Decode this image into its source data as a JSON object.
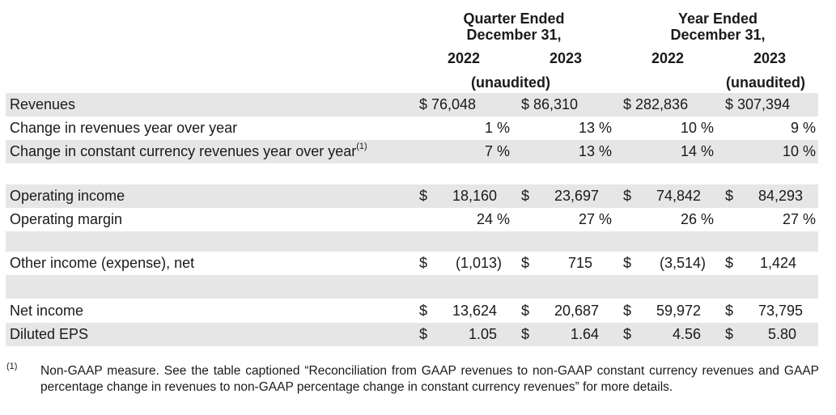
{
  "headers": {
    "quarter_group": [
      "Quarter Ended",
      "December 31,"
    ],
    "year_group": [
      "Year Ended",
      "December 31,"
    ],
    "years": [
      "2022",
      "2023",
      "2022",
      "2023"
    ],
    "unaudited_q": "(unaudited)",
    "unaudited_y": "(unaudited)"
  },
  "rows": {
    "revenues": {
      "label": "Revenues",
      "c1": "$ 76,048",
      "c2": "$ 86,310",
      "c3": "$ 282,836",
      "c4": "$ 307,394"
    },
    "change_rev": {
      "label": "Change in revenues year over year",
      "c1": "1 %",
      "c2": "13 %",
      "c3": "10 %",
      "c4": "9 %"
    },
    "change_cc": {
      "label": "Change in constant currency revenues year over year",
      "sup": "(1)",
      "c1": "7 %",
      "c2": "13 %",
      "c3": "14 %",
      "c4": "10 %"
    },
    "op_income": {
      "label": "Operating income",
      "d": "$",
      "c1": "18,160",
      "c2": "23,697",
      "c3": "74,842",
      "c4": "84,293"
    },
    "op_margin": {
      "label": "Operating margin",
      "c1": "24 %",
      "c2": "27 %",
      "c3": "26 %",
      "c4": "27 %"
    },
    "other_income": {
      "label": "Other income (expense), net",
      "d": "$",
      "c1": "(1,013)",
      "c2": "715",
      "c3": "(3,514)",
      "c4": "1,424"
    },
    "net_income": {
      "label": "Net income",
      "d": "$",
      "c1": "13,624",
      "c2": "20,687",
      "c3": "59,972",
      "c4": "73,795"
    },
    "eps": {
      "label": "Diluted EPS",
      "d": "$",
      "c1": "1.05",
      "c2": "1.64",
      "c3": "4.56",
      "c4": "5.80"
    }
  },
  "footnote": {
    "mark": "(1)",
    "text": "Non-GAAP measure. See the table captioned “Reconciliation from GAAP revenues to non-GAAP constant currency revenues and GAAP percentage change in revenues to non-GAAP percentage change in constant currency revenues” for more details."
  }
}
